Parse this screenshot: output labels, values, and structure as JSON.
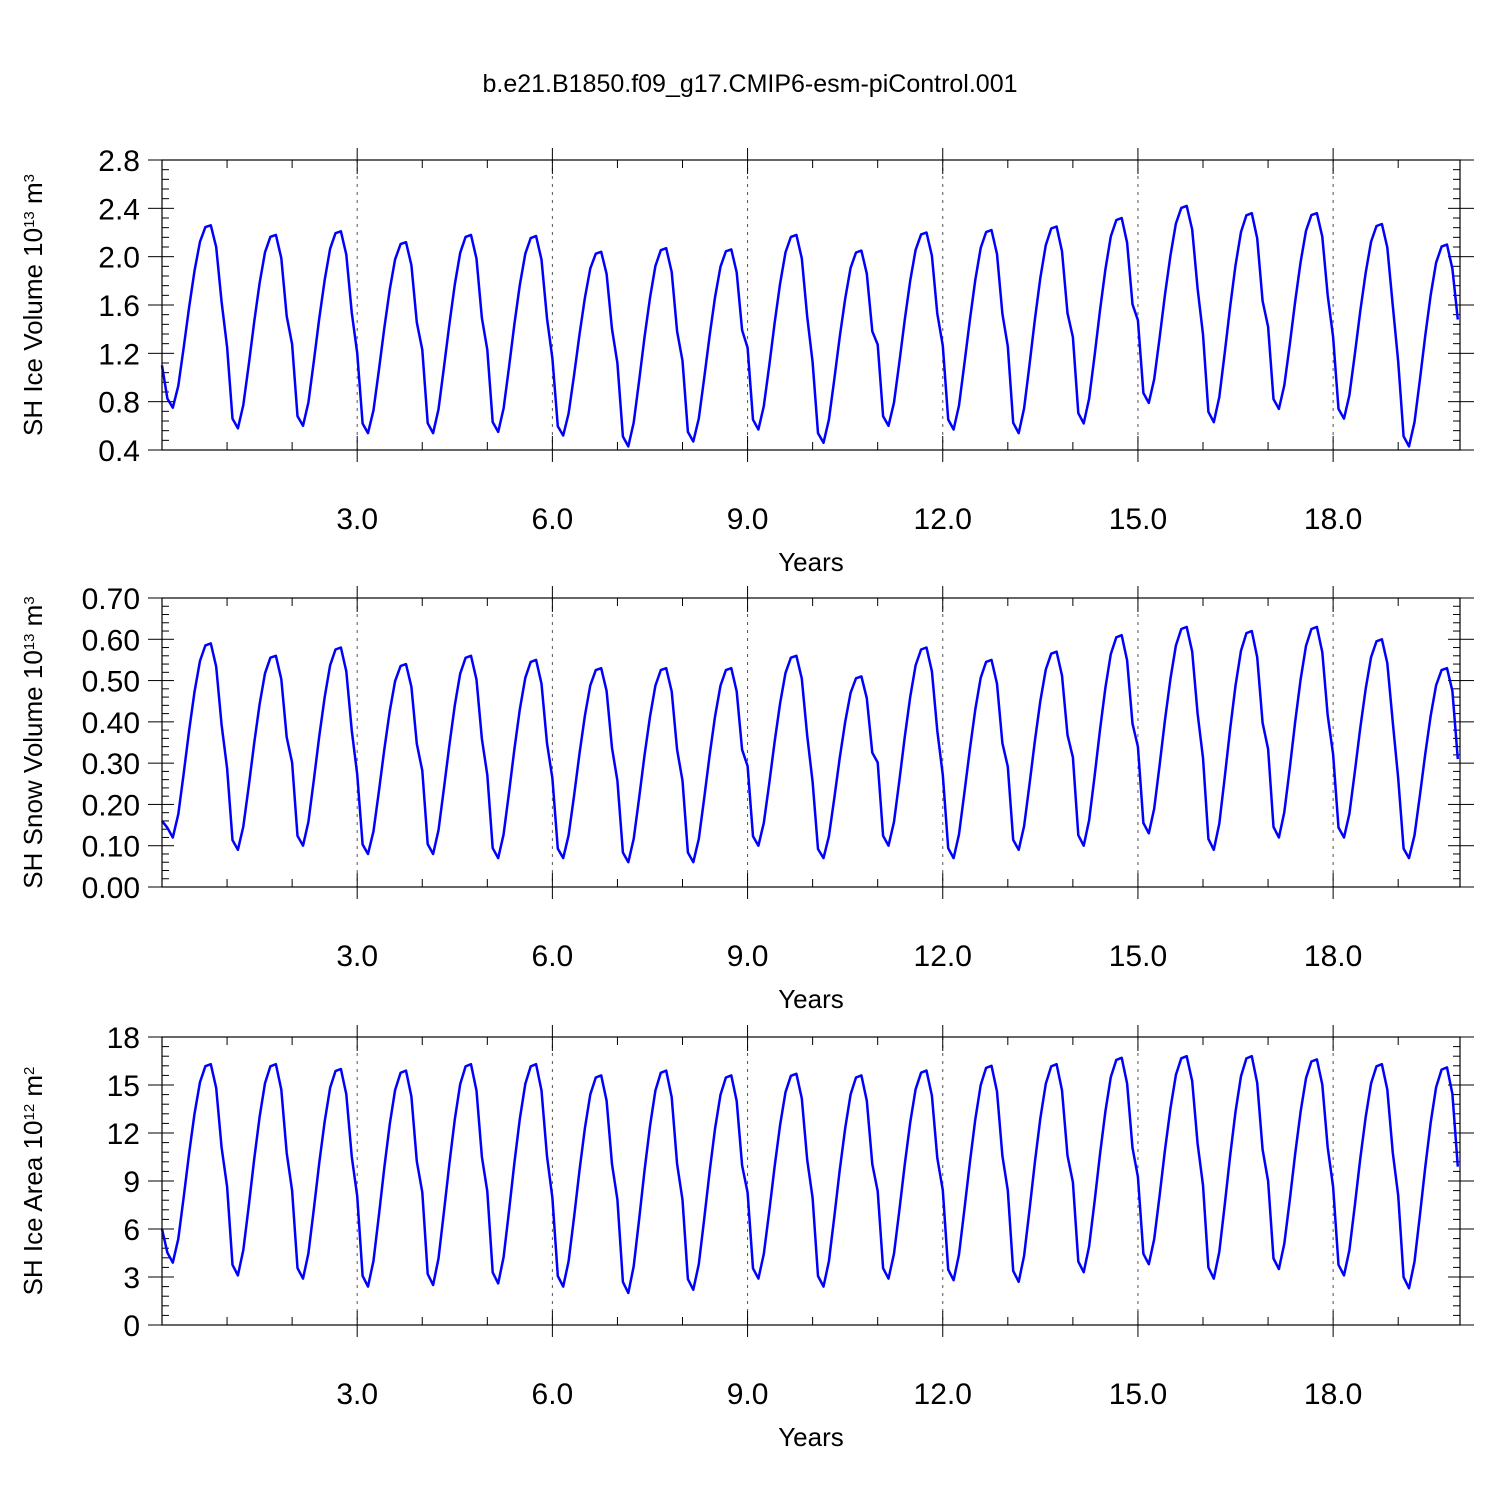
{
  "title": "b.e21.B1850.f09_g17.CMIP6-esm-piControl.001",
  "chart_data": [
    {
      "type": "line",
      "ylabel": "SH Ice Volume 10",
      "ylabel_exponent": "13",
      "ylabel_unit": "m",
      "ylabel_unit_exponent": "3",
      "xlabel": "Years",
      "xlim": [
        0.0,
        19.95
      ],
      "ylim": [
        0.4,
        2.8
      ],
      "yticks": [
        "0.4",
        "0.8",
        "1.2",
        "1.6",
        "2.0",
        "2.4",
        "2.8"
      ],
      "xticks": [
        "3.0",
        "6.0",
        "9.0",
        "12.0",
        "15.0",
        "18.0"
      ],
      "line_color": "#0000ff",
      "grid": "dashed vertical lines at major x ticks",
      "series": [
        {
          "summary": "monthly seasonal cycle, 20 years",
          "annual_min": [
            0.75,
            0.58,
            0.6,
            0.54,
            0.54,
            0.55,
            0.52,
            0.43,
            0.47,
            0.57,
            0.46,
            0.6,
            0.57,
            0.54,
            0.62,
            0.79,
            0.63,
            0.74,
            0.66,
            0.43
          ],
          "annual_max": [
            2.26,
            2.18,
            2.21,
            2.12,
            2.18,
            2.17,
            2.04,
            2.07,
            2.06,
            2.18,
            2.05,
            2.2,
            2.22,
            2.25,
            2.32,
            2.42,
            2.36,
            2.36,
            2.27,
            2.1
          ],
          "first_value": 1.1,
          "last_value": 1.48
        }
      ]
    },
    {
      "type": "line",
      "ylabel": "SH Snow Volume 10",
      "ylabel_exponent": "13",
      "ylabel_unit": "m",
      "ylabel_unit_exponent": "3",
      "xlabel": "Years",
      "xlim": [
        0.0,
        19.95
      ],
      "ylim": [
        0.0,
        0.7
      ],
      "yticks": [
        "0.00",
        "0.10",
        "0.20",
        "0.30",
        "0.40",
        "0.50",
        "0.60",
        "0.70"
      ],
      "xticks": [
        "3.0",
        "6.0",
        "9.0",
        "12.0",
        "15.0",
        "18.0"
      ],
      "line_color": "#0000ff",
      "grid": "dashed vertical lines at major x ticks",
      "series": [
        {
          "summary": "monthly seasonal cycle, 20 years",
          "annual_min": [
            0.12,
            0.09,
            0.1,
            0.08,
            0.08,
            0.07,
            0.07,
            0.06,
            0.06,
            0.1,
            0.07,
            0.1,
            0.07,
            0.09,
            0.1,
            0.13,
            0.09,
            0.12,
            0.12,
            0.07
          ],
          "annual_max": [
            0.59,
            0.56,
            0.58,
            0.54,
            0.56,
            0.55,
            0.53,
            0.53,
            0.53,
            0.56,
            0.51,
            0.58,
            0.55,
            0.57,
            0.61,
            0.63,
            0.62,
            0.63,
            0.6,
            0.53
          ],
          "first_value": 0.16,
          "last_value": 0.31
        }
      ]
    },
    {
      "type": "line",
      "ylabel": "SH Ice Area 10",
      "ylabel_exponent": "12",
      "ylabel_unit": "m",
      "ylabel_unit_exponent": "2",
      "xlabel": "Years",
      "xlim": [
        0.0,
        19.95
      ],
      "ylim": [
        0,
        18
      ],
      "yticks": [
        "0",
        "3",
        "6",
        "9",
        "12",
        "15",
        "18"
      ],
      "xticks": [
        "3.0",
        "6.0",
        "9.0",
        "12.0",
        "15.0",
        "18.0"
      ],
      "line_color": "#0000ff",
      "grid": "dashed vertical lines at major x ticks",
      "series": [
        {
          "summary": "monthly seasonal cycle, 20 years",
          "annual_min": [
            3.9,
            3.1,
            2.9,
            2.4,
            2.5,
            2.6,
            2.4,
            2.0,
            2.2,
            2.9,
            2.4,
            2.9,
            2.8,
            2.7,
            3.3,
            3.8,
            2.9,
            3.5,
            3.1,
            2.3
          ],
          "annual_max": [
            16.3,
            16.3,
            16.0,
            15.9,
            16.3,
            16.3,
            15.6,
            15.9,
            15.6,
            15.7,
            15.6,
            15.9,
            16.2,
            16.3,
            16.7,
            16.8,
            16.8,
            16.6,
            16.3,
            16.1
          ],
          "first_value": 6.0,
          "last_value": 9.9
        }
      ]
    }
  ]
}
